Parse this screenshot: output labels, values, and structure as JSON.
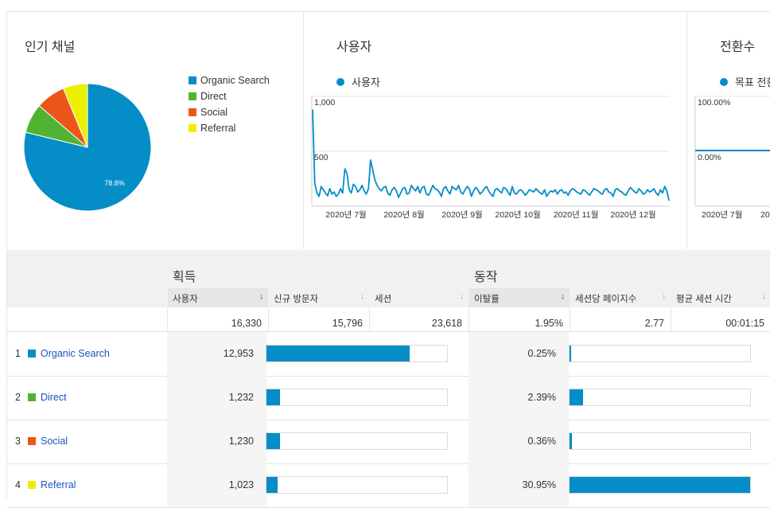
{
  "colors": {
    "organic": "#058dc7",
    "direct": "#50b432",
    "social": "#ed561b",
    "referral": "#edef00",
    "line": "#058dc7",
    "bar": "#058dc7"
  },
  "channels_panel": {
    "title": "인기 채널",
    "legend": [
      "Organic Search",
      "Direct",
      "Social",
      "Referral"
    ]
  },
  "pie_chart": {
    "type": "pie",
    "labels": [
      "Organic Search",
      "Direct",
      "Social",
      "Referral"
    ],
    "values": [
      78.8,
      7.5,
      7.5,
      6.2
    ],
    "label_text": "78.8%"
  },
  "users_panel": {
    "title": "사용자",
    "legend_label": "사용자"
  },
  "conversions_panel": {
    "title": "전환수",
    "legend_label": "목표 전환",
    "y_labels": [
      "100.00%",
      "0.00%"
    ],
    "x_labels": [
      "2020년 7월",
      "20"
    ]
  },
  "chart_data": {
    "type": "line",
    "title": "사용자",
    "series": [
      {
        "name": "사용자",
        "values": [
          880,
          210,
          120,
          90,
          180,
          150,
          120,
          95,
          160,
          110,
          130,
          90,
          110,
          160,
          120,
          340,
          300,
          150,
          120,
          200,
          180,
          130,
          150,
          190,
          140,
          110,
          160,
          420,
          330,
          240,
          190,
          160,
          140,
          170,
          180,
          120,
          100,
          150,
          170,
          140,
          80,
          120,
          160,
          170,
          110,
          120,
          190,
          160,
          140,
          180,
          120,
          170,
          180,
          110,
          100,
          140,
          190,
          160,
          150,
          130,
          90,
          160,
          180,
          140,
          110,
          180,
          160,
          150,
          190,
          130,
          110,
          150,
          180,
          160,
          90,
          140,
          170,
          150,
          110,
          130,
          160,
          180,
          140,
          110,
          90,
          150,
          160,
          140,
          120,
          170,
          160,
          130,
          100,
          180,
          120,
          110,
          140,
          150,
          130,
          100,
          120,
          150,
          140,
          130,
          160,
          140,
          120,
          110,
          150,
          90,
          120,
          140,
          130,
          150,
          110,
          140,
          150,
          120,
          130,
          100,
          140,
          160,
          150,
          130,
          120,
          110,
          150,
          140,
          120,
          100,
          130,
          160,
          150,
          140,
          120,
          110,
          150,
          160,
          130,
          120,
          90,
          150,
          160,
          140,
          130,
          110,
          100,
          140,
          170,
          150,
          130,
          120,
          160,
          140,
          110,
          120,
          150,
          130,
          140,
          160,
          120,
          100,
          150,
          120,
          180,
          140,
          50
        ]
      }
    ],
    "ylim": [
      0,
      1000
    ],
    "yticks": [
      "1,000",
      "500"
    ],
    "xticks": [
      "2020년 7월",
      "2020년 8월",
      "2020년 9월",
      "2020년 10월",
      "2020년 11월",
      "2020년 12월"
    ]
  },
  "table": {
    "groups": [
      "획득",
      "동작"
    ],
    "columns": [
      {
        "label": "사용자",
        "arrow": "↓"
      },
      {
        "label": "신규 방문자",
        "arrow": "↓"
      },
      {
        "label": "세션",
        "arrow": "↓"
      },
      {
        "label": "이탈률",
        "arrow": "↓"
      },
      {
        "label": "세션당 페이지수",
        "arrow": "↓"
      },
      {
        "label": "평균 세션 시간",
        "arrow": "↓"
      }
    ],
    "totals": [
      "16,330",
      "15,796",
      "23,618",
      "1.95%",
      "2.77",
      "00:01:15"
    ],
    "rows": [
      {
        "num": "1",
        "name": "Organic Search",
        "users": "12,953",
        "users_share": 0.793,
        "bounce": "0.25%",
        "bounce_share": 0.008
      },
      {
        "num": "2",
        "name": "Direct",
        "users": "1,232",
        "users_share": 0.075,
        "bounce": "2.39%",
        "bounce_share": 0.077
      },
      {
        "num": "3",
        "name": "Social",
        "users": "1,230",
        "users_share": 0.075,
        "bounce": "0.36%",
        "bounce_share": 0.012
      },
      {
        "num": "4",
        "name": "Referral",
        "users": "1,023",
        "users_share": 0.063,
        "bounce": "30.95%",
        "bounce_share": 1.0
      }
    ]
  }
}
